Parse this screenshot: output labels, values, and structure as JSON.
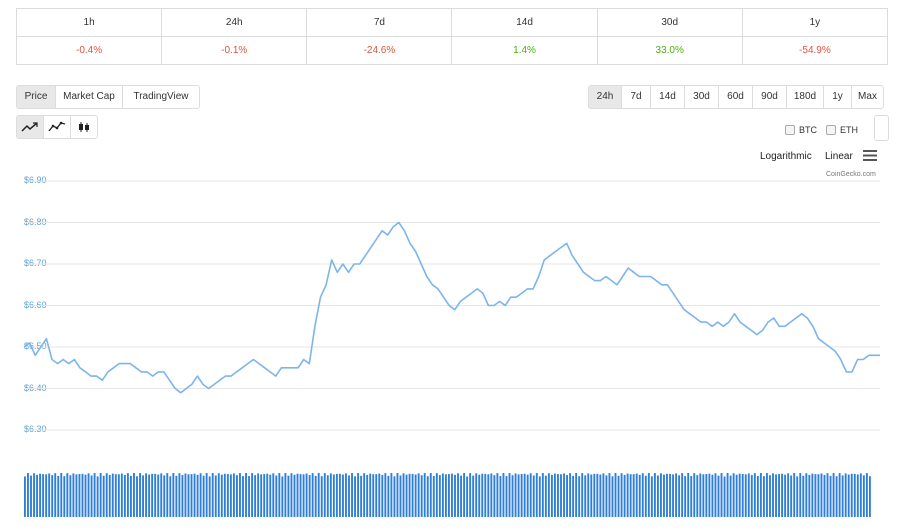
{
  "change_table": {
    "periods": [
      "1h",
      "24h",
      "7d",
      "14d",
      "30d",
      "1y"
    ],
    "values": [
      "-0.4%",
      "-0.1%",
      "-24.6%",
      "1.4%",
      "33.0%",
      "-54.9%"
    ]
  },
  "view_tabs": [
    "Price",
    "Market Cap",
    "TradingView"
  ],
  "range_tabs": [
    "24h",
    "7d",
    "14d",
    "30d",
    "60d",
    "90d",
    "180d",
    "1y",
    "Max"
  ],
  "compare": {
    "btc": "BTC",
    "eth": "ETH"
  },
  "scale": {
    "log": "Logarithmic",
    "linear": "Linear"
  },
  "credit": "CoinGecko.com",
  "colors": {
    "line": "#7cb5ec",
    "volume": "#2f7ed8",
    "negative": "#e15241",
    "positive": "#4eaf0a"
  },
  "chart_data": {
    "type": "line",
    "title": "",
    "xlabel": "",
    "ylabel": "",
    "ylim": [
      6.2,
      6.9
    ],
    "yticks": [
      "$6.90",
      "$6.80",
      "$6.70",
      "$6.60",
      "$6.50",
      "$6.40",
      "$6.30"
    ],
    "ytick_values": [
      6.9,
      6.8,
      6.7,
      6.6,
      6.5,
      6.4,
      6.3
    ],
    "series": [
      {
        "values": [
          6.5,
          6.51,
          6.48,
          6.5,
          6.52,
          6.47,
          6.46,
          6.47,
          6.46,
          6.47,
          6.45,
          6.44,
          6.43,
          6.43,
          6.42,
          6.44,
          6.45,
          6.46,
          6.46,
          6.46,
          6.45,
          6.44,
          6.44,
          6.43,
          6.44,
          6.44,
          6.42,
          6.4,
          6.39,
          6.4,
          6.41,
          6.43,
          6.41,
          6.4,
          6.41,
          6.42,
          6.43,
          6.43,
          6.44,
          6.45,
          6.46,
          6.47,
          6.46,
          6.45,
          6.44,
          6.43,
          6.45,
          6.45,
          6.45,
          6.45,
          6.47,
          6.46,
          6.55,
          6.62,
          6.65,
          6.71,
          6.68,
          6.7,
          6.68,
          6.7,
          6.7,
          6.72,
          6.74,
          6.76,
          6.78,
          6.77,
          6.79,
          6.8,
          6.78,
          6.75,
          6.73,
          6.7,
          6.67,
          6.65,
          6.64,
          6.62,
          6.6,
          6.59,
          6.61,
          6.62,
          6.63,
          6.64,
          6.63,
          6.6,
          6.6,
          6.61,
          6.6,
          6.62,
          6.62,
          6.63,
          6.64,
          6.64,
          6.67,
          6.71,
          6.72,
          6.73,
          6.74,
          6.75,
          6.72,
          6.7,
          6.68,
          6.67,
          6.66,
          6.66,
          6.67,
          6.66,
          6.65,
          6.67,
          6.69,
          6.68,
          6.67,
          6.67,
          6.67,
          6.66,
          6.65,
          6.65,
          6.63,
          6.61,
          6.59,
          6.58,
          6.57,
          6.56,
          6.56,
          6.55,
          6.56,
          6.55,
          6.56,
          6.58,
          6.56,
          6.55,
          6.54,
          6.53,
          6.54,
          6.56,
          6.57,
          6.55,
          6.55,
          6.56,
          6.57,
          6.58,
          6.57,
          6.55,
          6.52,
          6.51,
          6.5,
          6.49,
          6.47,
          6.44,
          6.44,
          6.47,
          6.47,
          6.48,
          6.48,
          6.48
        ]
      }
    ],
    "volume_bars": 280,
    "grid": true,
    "legend": "none"
  }
}
